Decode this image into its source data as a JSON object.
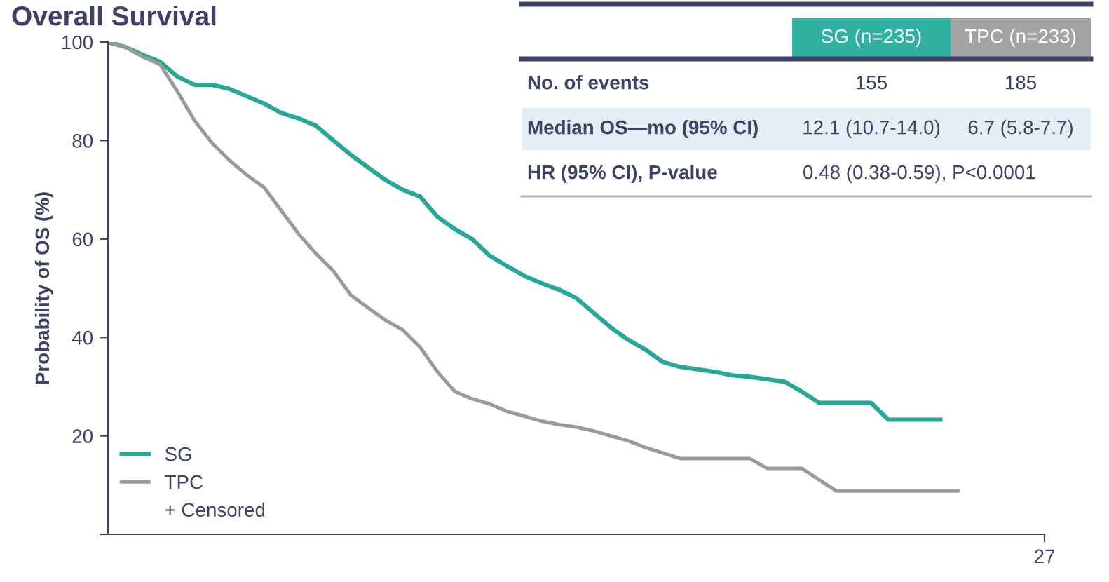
{
  "chart_data": {
    "type": "line",
    "title": "Overall Survival",
    "ylabel": "Probability of OS (%)",
    "categories": [
      null,
      null,
      null,
      null,
      null,
      null,
      null,
      null,
      null,
      null,
      null,
      null,
      null,
      null,
      null,
      null,
      null,
      null,
      null,
      null,
      null,
      null,
      null,
      null,
      null,
      null,
      null,
      null,
      null,
      null,
      null,
      null,
      null,
      null,
      null,
      null,
      null,
      null,
      null,
      null,
      null,
      null,
      null,
      null,
      null,
      null,
      null,
      null,
      null,
      null,
      null,
      null,
      null,
      null,
      null
    ],
    "ylim": [
      0,
      100
    ],
    "yticks": [
      {
        "value": 0,
        "label": null
      },
      20,
      40,
      60,
      80,
      100
    ],
    "grid": false,
    "legend": "bottom left",
    "marker": "none",
    "series": [
      {
        "name": "SG",
        "color": "#26a896",
        "values": [
          100,
          99,
          97.4,
          96,
          93,
          91.3,
          91.3,
          90.5,
          89,
          87.5,
          85.6,
          84.5,
          83,
          80,
          77.1,
          74.5,
          72,
          70,
          68.6,
          64.5,
          62,
          60,
          56.6,
          54.5,
          52.5,
          51,
          49.7,
          48,
          45,
          42,
          39.5,
          37.5,
          35,
          34,
          33.5,
          33,
          32.3,
          32,
          31.5,
          31,
          29,
          26.7,
          26.7,
          26.7,
          26.7,
          23.3,
          23.3,
          23.3,
          23.3,
          null,
          null,
          null,
          null,
          null,
          null
        ]
      },
      {
        "name": "TPC",
        "color": "#9a9a9a",
        "values": [
          100,
          99,
          97,
          95.5,
          90,
          84,
          79.5,
          76,
          73,
          70.5,
          65.7,
          61,
          57,
          53.5,
          48.6,
          46,
          43.5,
          41.5,
          38,
          33,
          29,
          27.5,
          26.5,
          25,
          24,
          23,
          22.3,
          21.8,
          21,
          20,
          19,
          17.6,
          16.5,
          15.4,
          15.4,
          15.4,
          15.4,
          15.4,
          13.4,
          13.4,
          13.4,
          11.1,
          8.8,
          8.8,
          8.8,
          8.8,
          8.8,
          8.8,
          8.8,
          8.8,
          null,
          null,
          null,
          null,
          null
        ]
      }
    ],
    "annotations": [
      "SG (n=235)",
      "TPC (n=233)",
      "No. of events",
      "155",
      "185",
      "Median OS—mo (95% CI)",
      "12.1 (10.7-14.0)",
      "6.7 (5.8-7.7)",
      "HR (95% CI), P-value",
      "0.48 (0.38-0.59), P<0.0001",
      "27",
      "+ Censored"
    ]
  }
}
